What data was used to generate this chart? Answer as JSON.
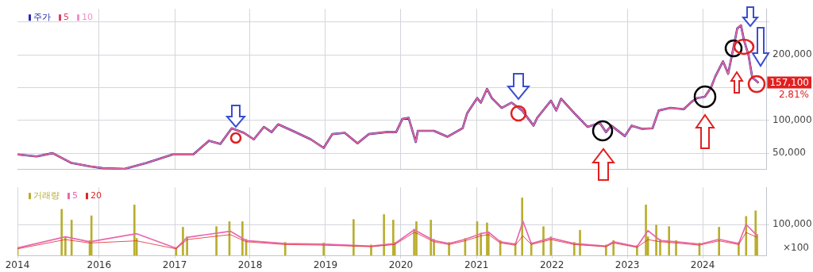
{
  "chart_data": [
    {
      "type": "line",
      "xlim": [
        "2014-12-02",
        "2024-11-03"
      ],
      "ylim": [
        25000,
        270000
      ],
      "xticks": [
        "2016",
        "2017",
        "2018",
        "2019",
        "2020",
        "2021",
        "2022",
        "2023",
        "2024"
      ],
      "yticks": [
        {
          "value": 50000,
          "label": "50,000"
        },
        {
          "value": 100000,
          "label": "100,000"
        },
        {
          "value": 150000,
          "label": null
        },
        {
          "value": 200000,
          "label": "200,000"
        },
        {
          "value": 250000,
          "label": null
        }
      ],
      "tick_labels": "y",
      "grid": true,
      "legend": "top left",
      "annotations": [
        "157,100",
        "2.81%"
      ],
      "x": [
        "2014-12-02",
        "2015-03-05",
        "2015-05-21",
        "2015-08-21",
        "2015-11-17",
        "2016-01-19",
        "2016-05-03",
        "2016-08-17",
        "2016-12-23",
        "2017-04-01",
        "2017-06-16",
        "2017-08-10",
        "2017-10-04",
        "2017-12-02",
        "2018-01-19",
        "2018-03-09",
        "2018-04-15",
        "2018-05-17",
        "2018-07-26",
        "2018-10-22",
        "2018-12-23",
        "2019-02-03",
        "2019-04-04",
        "2019-06-05",
        "2019-07-29",
        "2019-10-22",
        "2019-12-09",
        "2020-01-08",
        "2020-02-07",
        "2020-03-13",
        "2020-03-23",
        "2020-06-09",
        "2020-08-14",
        "2020-10-26",
        "2020-11-17",
        "2021-01-04",
        "2021-01-22",
        "2021-02-21",
        "2021-03-16",
        "2021-05-03",
        "2021-06-20",
        "2021-08-10",
        "2021-10-04",
        "2021-10-22",
        "2021-12-27",
        "2022-01-22",
        "2022-02-14",
        "2022-04-19",
        "2022-06-23",
        "2022-08-21",
        "2022-09-20",
        "2022-10-15",
        "2022-12-20",
        "2023-01-22",
        "2023-03-13",
        "2023-05-03",
        "2023-06-02",
        "2023-07-29",
        "2023-10-01",
        "2023-11-07",
        "2023-12-05",
        "2024-01-11",
        "2024-02-10",
        "2024-03-02",
        "2024-04-08",
        "2024-05-03",
        "2024-05-21",
        "2024-06-16",
        "2024-07-04",
        "2024-07-19",
        "2024-08-10",
        "2024-08-28",
        "2024-09-13",
        "2024-09-27"
      ],
      "series": [
        {
          "name": "주가",
          "color": "#2a2ab0",
          "values": [
            48000,
            45000,
            50000,
            35000,
            30000,
            27000,
            26000,
            35000,
            48000,
            48000,
            69000,
            64000,
            88000,
            81000,
            71000,
            90000,
            82000,
            94000,
            84000,
            71000,
            58000,
            79000,
            81000,
            65000,
            79000,
            82000,
            82000,
            102000,
            104000,
            67000,
            84000,
            84000,
            75000,
            88000,
            111000,
            134000,
            127000,
            148000,
            134000,
            119000,
            127000,
            115000,
            92000,
            104000,
            130000,
            115000,
            133000,
            111000,
            90000,
            96000,
            82000,
            92000,
            76000,
            92000,
            87000,
            88000,
            115000,
            119000,
            117000,
            128000,
            134000,
            136000,
            150000,
            167000,
            190000,
            171000,
            199000,
            240000,
            245000,
            222000,
            199000,
            165000,
            161000,
            157100
          ]
        },
        {
          "name": "5",
          "color": "#e03c64",
          "values": [
            48000,
            45000,
            50000,
            35000,
            30000,
            27000,
            26000,
            35000,
            48000,
            48000,
            69000,
            64000,
            88000,
            81000,
            71000,
            90000,
            82000,
            94000,
            84000,
            71000,
            58000,
            79000,
            81000,
            65000,
            79000,
            82000,
            82000,
            102000,
            104000,
            67000,
            84000,
            84000,
            75000,
            88000,
            111000,
            134000,
            127000,
            148000,
            134000,
            119000,
            127000,
            115000,
            92000,
            104000,
            130000,
            115000,
            133000,
            111000,
            90000,
            96000,
            82000,
            92000,
            76000,
            92000,
            87000,
            88000,
            115000,
            119000,
            117000,
            128000,
            134000,
            136000,
            150000,
            167000,
            190000,
            171000,
            199000,
            240000,
            245000,
            222000,
            199000,
            165000,
            161000,
            157100
          ]
        },
        {
          "name": "10",
          "color": "#f090c8",
          "values": [
            48000,
            45000,
            50000,
            35000,
            30000,
            27000,
            26000,
            35000,
            48000,
            48000,
            69000,
            64000,
            88000,
            81000,
            71000,
            90000,
            82000,
            94000,
            84000,
            71000,
            58000,
            79000,
            81000,
            65000,
            79000,
            82000,
            82000,
            102000,
            104000,
            67000,
            84000,
            84000,
            75000,
            88000,
            111000,
            134000,
            127000,
            148000,
            134000,
            119000,
            127000,
            115000,
            92000,
            104000,
            130000,
            115000,
            133000,
            111000,
            90000,
            96000,
            82000,
            92000,
            76000,
            92000,
            87000,
            88000,
            115000,
            119000,
            117000,
            128000,
            134000,
            136000,
            150000,
            167000,
            190000,
            171000,
            199000,
            240000,
            245000,
            222000,
            199000,
            165000,
            161000,
            157100
          ]
        }
      ]
    },
    {
      "type": "bar",
      "xlim": [
        "2014-12-02",
        "2024-11-03"
      ],
      "ylim": [
        0,
        220000
      ],
      "xticks": [
        {
          "value": "2014-12-02",
          "label": "2014"
        },
        "2016",
        "2017",
        "2018",
        "2019",
        "2020",
        "2021",
        "2022",
        "2023",
        "2024"
      ],
      "yticks": [
        {
          "value": 100000,
          "label": "100,000"
        }
      ],
      "grid": true,
      "legend": "top left",
      "annotations": [
        "×100"
      ],
      "series": [
        {
          "name": "거래량",
          "color": "#b8ae2e",
          "x": [
            "2014-12-02",
            "2015-07-04",
            "2015-07-22",
            "2015-08-21",
            "2015-11-17",
            "2015-11-25",
            "2016-06-20",
            "2016-07-01",
            "2017-01-08",
            "2017-02-10",
            "2017-03-02",
            "2017-07-22",
            "2017-09-23",
            "2017-11-25",
            "2017-12-13",
            "2018-06-20",
            "2018-12-23",
            "2019-05-17",
            "2019-08-10",
            "2019-10-11",
            "2019-11-25",
            "2019-12-02",
            "2020-03-05",
            "2020-03-16",
            "2020-05-25",
            "2020-06-09",
            "2020-08-21",
            "2020-11-07",
            "2021-01-04",
            "2021-01-22",
            "2021-02-21",
            "2021-02-28",
            "2021-04-26",
            "2021-07-08",
            "2021-08-10",
            "2021-09-23",
            "2021-11-21",
            "2021-12-27",
            "2022-04-19",
            "2022-05-17",
            "2022-09-20",
            "2022-10-26",
            "2023-02-17",
            "2023-04-01",
            "2023-04-11",
            "2023-05-21",
            "2023-06-09",
            "2023-07-22",
            "2023-08-25",
            "2023-12-16",
            "2024-03-20",
            "2024-06-23",
            "2024-07-29",
            "2024-09-13",
            "2024-09-20"
          ],
          "values": [
            26000,
            149000,
            60000,
            114000,
            48000,
            128000,
            163000,
            55000,
            26000,
            91000,
            60000,
            93000,
            109000,
            109000,
            52000,
            42000,
            40000,
            116000,
            34000,
            132000,
            114000,
            42000,
            85000,
            109000,
            114000,
            52000,
            42000,
            55000,
            109000,
            72000,
            105000,
            76000,
            48000,
            40000,
            186000,
            42000,
            93000,
            60000,
            42000,
            81000,
            34000,
            48000,
            32000,
            163000,
            60000,
            98000,
            52000,
            93000,
            48000,
            40000,
            91000,
            42000,
            126000,
            144000,
            68000
          ]
        },
        {
          "name": "5",
          "color": "#e868b0",
          "type": "line",
          "x": [
            "2014-12-02",
            "2015-07-22",
            "2015-11-17",
            "2016-07-01",
            "2017-01-08",
            "2017-03-02",
            "2017-09-27",
            "2017-12-13",
            "2018-06-20",
            "2018-12-23",
            "2019-08-10",
            "2019-12-02",
            "2020-03-05",
            "2020-03-23",
            "2020-06-09",
            "2020-08-21",
            "2020-11-07",
            "2021-01-22",
            "2021-02-28",
            "2021-04-26",
            "2021-07-08",
            "2021-08-14",
            "2021-09-23",
            "2021-12-27",
            "2022-04-19",
            "2022-09-20",
            "2022-10-26",
            "2023-02-17",
            "2023-04-11",
            "2023-06-09",
            "2023-08-25",
            "2023-12-16",
            "2024-03-20",
            "2024-06-23",
            "2024-07-29",
            "2024-09-20"
          ],
          "values": [
            24000,
            60000,
            44000,
            70000,
            23000,
            58000,
            78000,
            48000,
            38000,
            36000,
            30000,
            38000,
            82000,
            76000,
            48000,
            38000,
            52000,
            70000,
            75000,
            44000,
            36000,
            110000,
            38000,
            56000,
            38000,
            30000,
            44000,
            28000,
            80000,
            48000,
            44000,
            36000,
            52000,
            38000,
            100000,
            64000
          ]
        },
        {
          "name": "20",
          "color": "#e02424",
          "type": "line",
          "x": [
            "2014-12-02",
            "2015-07-22",
            "2015-11-17",
            "2016-07-01",
            "2017-01-08",
            "2017-03-02",
            "2017-09-27",
            "2017-12-13",
            "2018-06-20",
            "2018-12-23",
            "2019-08-10",
            "2019-12-02",
            "2020-03-05",
            "2020-03-23",
            "2020-06-09",
            "2020-08-21",
            "2020-11-07",
            "2021-01-22",
            "2021-02-28",
            "2021-04-26",
            "2021-07-08",
            "2021-08-14",
            "2021-09-23",
            "2021-12-27",
            "2022-04-19",
            "2022-09-20",
            "2022-10-26",
            "2023-02-17",
            "2023-04-11",
            "2023-06-09",
            "2023-08-25",
            "2023-12-16",
            "2024-03-20",
            "2024-06-23",
            "2024-07-29",
            "2024-09-20"
          ],
          "values": [
            21000,
            51000,
            40000,
            47000,
            21000,
            51000,
            67000,
            44000,
            35000,
            33000,
            28000,
            35000,
            74000,
            70000,
            44000,
            35000,
            47000,
            63000,
            67000,
            40000,
            33000,
            63000,
            35000,
            51000,
            35000,
            28000,
            40000,
            26000,
            51000,
            44000,
            40000,
            33000,
            47000,
            35000,
            74000,
            58000
          ]
        }
      ]
    }
  ]
}
